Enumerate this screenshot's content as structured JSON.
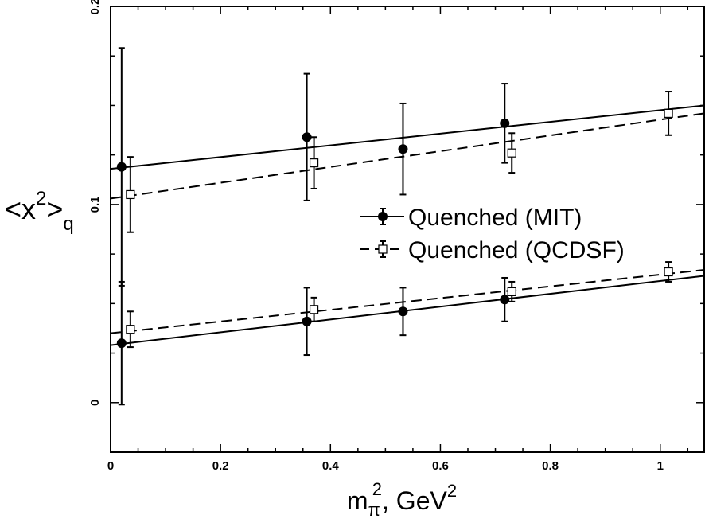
{
  "chart_data": {
    "type": "scatter",
    "title": "",
    "xlabel": {
      "base": "m",
      "sub": "π",
      "sup": "2",
      "rest": ", GeV",
      "rest_sup": "2"
    },
    "ylabel": {
      "open": "<",
      "base": "x",
      "sup": "2",
      "close": ">",
      "sub": "q"
    },
    "xlim": [
      0,
      1.08
    ],
    "ylim": [
      -0.025,
      0.2
    ],
    "x_ticks": [
      0,
      0.2,
      0.4,
      0.6,
      0.8,
      1
    ],
    "x_tick_labels": [
      "0",
      "0.2",
      "0.4",
      "0.6",
      "0.8",
      "1"
    ],
    "y_ticks": [
      0,
      0.1,
      0.2
    ],
    "y_tick_labels": [
      "0",
      "0.1",
      "0.2"
    ],
    "grid": false,
    "legend": {
      "placement": "center-right",
      "entries": [
        {
          "label": "Quenched (MIT)",
          "series": "mit"
        },
        {
          "label": "Quenched (QCDSF)",
          "series": "qcdsf"
        }
      ]
    },
    "series": [
      {
        "id": "mit",
        "marker": "filled-circle",
        "line": "solid",
        "color": "#000000",
        "groups": [
          {
            "x": [
              0.02,
              0.357,
              0.532,
              0.717
            ],
            "y": [
              0.119,
              0.134,
              0.128,
              0.141
            ],
            "err": [
              0.06,
              0.032,
              0.023,
              0.02
            ],
            "fit": [
              0.118,
              0.15
            ]
          },
          {
            "x": [
              0.02,
              0.357,
              0.532,
              0.717
            ],
            "y": [
              0.03,
              0.041,
              0.046,
              0.052
            ],
            "err": [
              0.031,
              0.017,
              0.012,
              0.011
            ],
            "fit": [
              0.029,
              0.064
            ]
          }
        ]
      },
      {
        "id": "qcdsf",
        "marker": "open-square",
        "line": "dashed",
        "color": "#000000",
        "groups": [
          {
            "x": [
              0.036,
              0.37,
              0.73,
              1.015
            ],
            "y": [
              0.105,
              0.121,
              0.126,
              0.146
            ],
            "err": [
              0.019,
              0.013,
              0.01,
              0.011
            ],
            "fit": [
              0.103,
              0.146
            ]
          },
          {
            "x": [
              0.036,
              0.37,
              0.73,
              1.015
            ],
            "y": [
              0.037,
              0.047,
              0.056,
              0.066
            ],
            "err": [
              0.009,
              0.006,
              0.005,
              0.005
            ],
            "fit": [
              0.035,
              0.067
            ]
          }
        ]
      }
    ]
  }
}
